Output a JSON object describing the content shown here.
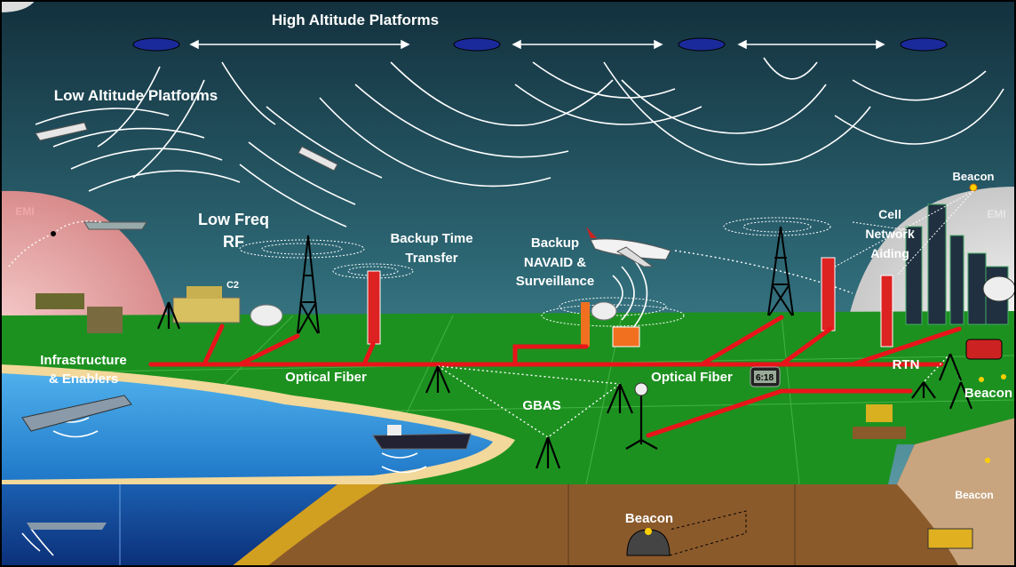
{
  "labels": [
    {
      "lines": [
        "High Altitude Platforms"
      ]
    },
    {
      "lines": [
        "Low Altitude Platforms"
      ]
    },
    {
      "lines": [
        "EMI"
      ]
    },
    {
      "lines": [
        "Low Freq",
        "RF"
      ]
    },
    {
      "lines": [
        "C2"
      ]
    },
    {
      "lines": [
        "Backup Time",
        "Transfer"
      ]
    },
    {
      "lines": [
        "Backup",
        "NAVAID &",
        "Surveillance"
      ]
    },
    {
      "lines": [
        "Beacon"
      ]
    },
    {
      "lines": [
        "Cell",
        "Network",
        "Aiding"
      ]
    },
    {
      "lines": [
        "EMI"
      ]
    },
    {
      "lines": [
        "Infrastructure",
        "& Enablers"
      ]
    },
    {
      "lines": [
        "Optical Fiber"
      ]
    },
    {
      "lines": [
        "Optical Fiber"
      ]
    },
    {
      "lines": [
        "GBAS"
      ]
    },
    {
      "lines": [
        "RTN"
      ]
    },
    {
      "lines": [
        "Beacon"
      ]
    },
    {
      "lines": [
        "Beacon"
      ]
    },
    {
      "lines": [
        "Beacon"
      ]
    },
    {
      "lines": [
        "6:18"
      ]
    }
  ]
}
